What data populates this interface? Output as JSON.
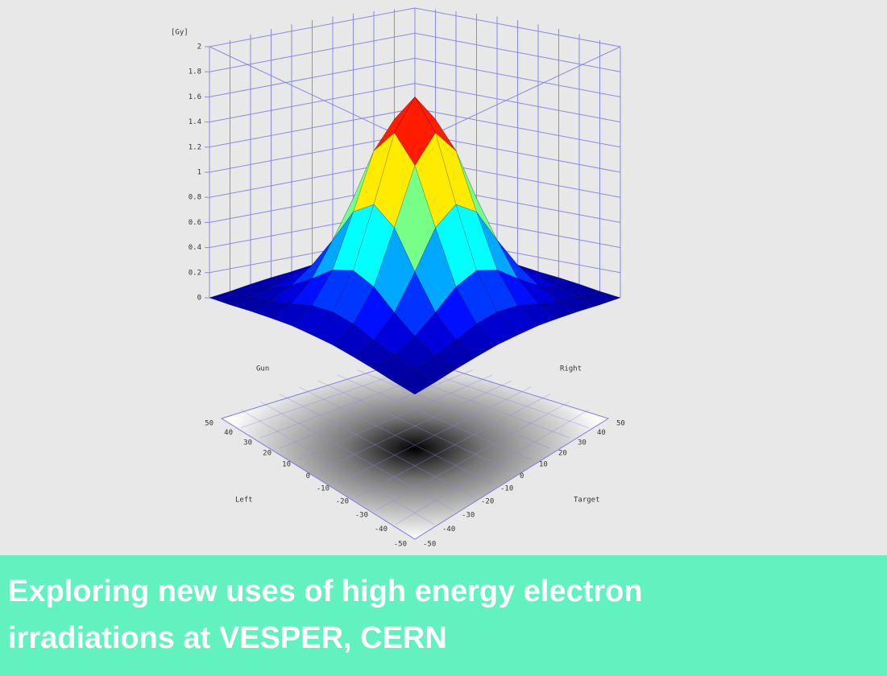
{
  "chart_data": {
    "type": "surface",
    "z_label": "[Gy]",
    "x_label": "Left",
    "y_label": "Target",
    "corner_labels": [
      "Gun",
      "Right"
    ],
    "x": [
      -50,
      -40,
      -30,
      -20,
      -10,
      0,
      10,
      20,
      30,
      40,
      50
    ],
    "y": [
      -50,
      -40,
      -30,
      -20,
      -10,
      0,
      10,
      20,
      30,
      40,
      50
    ],
    "z": [
      [
        0.0,
        0.0,
        0.01,
        0.02,
        0.03,
        0.03,
        0.03,
        0.02,
        0.01,
        0.0,
        0.0
      ],
      [
        0.0,
        0.01,
        0.03,
        0.07,
        0.12,
        0.14,
        0.12,
        0.07,
        0.03,
        0.01,
        0.0
      ],
      [
        0.01,
        0.03,
        0.1,
        0.21,
        0.34,
        0.4,
        0.34,
        0.21,
        0.1,
        0.03,
        0.01
      ],
      [
        0.02,
        0.07,
        0.21,
        0.46,
        0.74,
        0.86,
        0.74,
        0.46,
        0.21,
        0.07,
        0.02
      ],
      [
        0.03,
        0.12,
        0.34,
        0.74,
        1.17,
        1.37,
        1.17,
        0.74,
        0.34,
        0.12,
        0.03
      ],
      [
        0.03,
        0.14,
        0.4,
        0.86,
        1.37,
        1.6,
        1.37,
        0.86,
        0.4,
        0.14,
        0.03
      ],
      [
        0.03,
        0.12,
        0.34,
        0.74,
        1.17,
        1.37,
        1.17,
        0.74,
        0.34,
        0.12,
        0.03
      ],
      [
        0.02,
        0.07,
        0.21,
        0.46,
        0.74,
        0.86,
        0.74,
        0.46,
        0.21,
        0.07,
        0.02
      ],
      [
        0.01,
        0.03,
        0.1,
        0.21,
        0.34,
        0.4,
        0.34,
        0.21,
        0.1,
        0.03,
        0.01
      ],
      [
        0.0,
        0.01,
        0.03,
        0.07,
        0.12,
        0.14,
        0.12,
        0.07,
        0.03,
        0.01,
        0.0
      ],
      [
        0.0,
        0.0,
        0.01,
        0.02,
        0.03,
        0.03,
        0.03,
        0.02,
        0.01,
        0.0,
        0.0
      ]
    ],
    "zlim": [
      0,
      2
    ],
    "zticks": [
      0,
      0.2,
      0.4,
      0.6,
      0.8,
      1,
      1.2,
      1.4,
      1.6,
      1.8,
      2
    ],
    "xticks": [
      -50,
      -40,
      -30,
      -20,
      -10,
      0,
      10,
      20,
      30,
      40,
      50
    ],
    "yticks": [
      -50,
      -40,
      -30,
      -20,
      -10,
      0,
      10,
      20,
      30,
      40,
      50
    ],
    "colormap": "jet",
    "grid": true
  },
  "caption": "Exploring new uses of high energy electron irradiations at VESPER, CERN"
}
